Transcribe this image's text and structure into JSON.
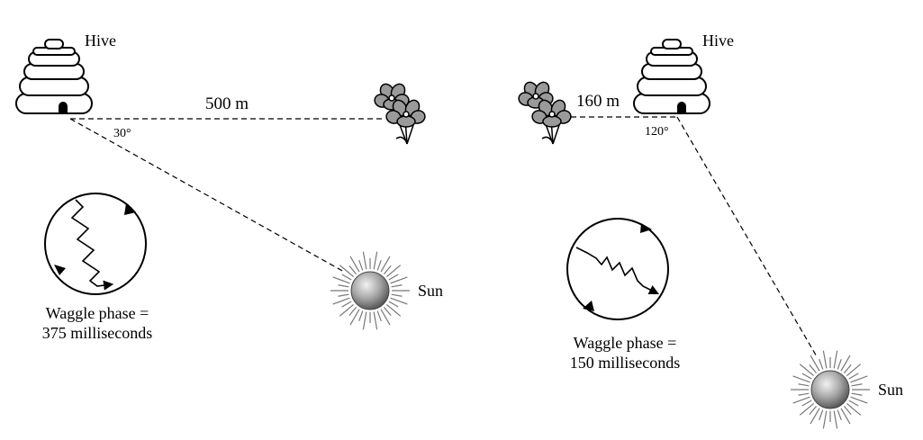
{
  "left_panel": {
    "hive_label": "Hive",
    "distance_label": "500 m",
    "angle_label": "30°",
    "sun_label": "Sun",
    "waggle_line1": "Waggle phase =",
    "waggle_line2": "375 milliseconds"
  },
  "right_panel": {
    "hive_label": "Hive",
    "distance_label": "160 m",
    "angle_label": "120°",
    "sun_label": "Sun",
    "waggle_line1": "Waggle phase =",
    "waggle_line2": "150 milliseconds"
  },
  "colors": {
    "line": "#000000",
    "sun_ray": "#777777",
    "sun_core": "#999999"
  }
}
